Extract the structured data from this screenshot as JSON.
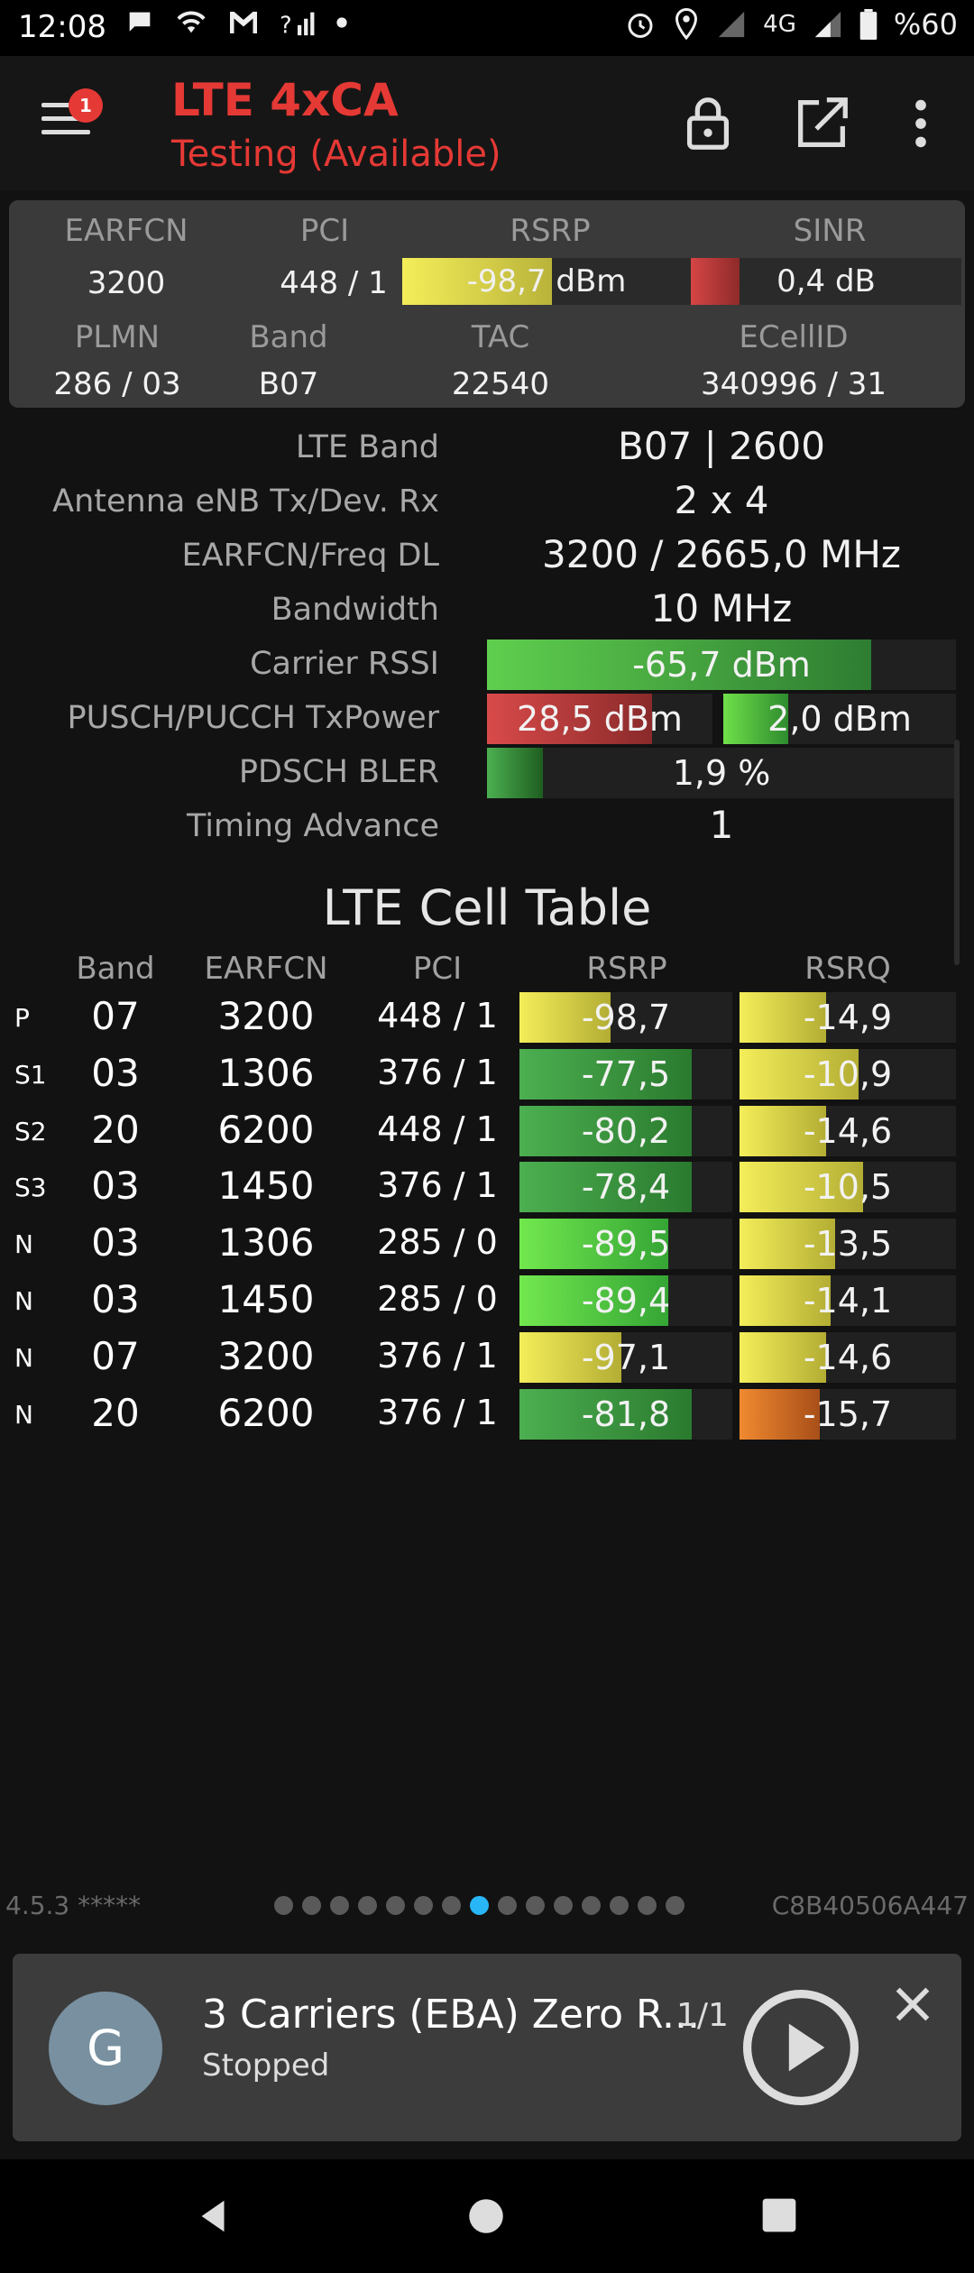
{
  "status_bar": {
    "time": "12:08",
    "network": "4G",
    "battery": "%60",
    "left_icons": [
      "chat-icon",
      "wifi-icon",
      "gmail-icon",
      "wifi-calling-icon",
      "dot-icon"
    ],
    "right_icons": [
      "alarm-icon",
      "location-icon",
      "signal-icon",
      "signal-icon",
      "battery-icon"
    ]
  },
  "app_bar": {
    "title": "LTE 4xCA",
    "subtitle": "Testing (Available)",
    "badge": "1",
    "accent_color": "#e53935"
  },
  "summary": {
    "labels": {
      "earfcn": "EARFCN",
      "pci": "PCI",
      "rsrp": "RSRP",
      "sinr": "SINR",
      "plmn": "PLMN",
      "band": "Band",
      "tac": "TAC",
      "ecellid": "ECellID"
    },
    "earfcn": "3200",
    "pci": "448 / 1",
    "rsrp": "-98,7 dBm",
    "rsrp_level": 0.52,
    "sinr": "0,4 dB",
    "sinr_level": 0.18,
    "plmn": "286 / 03",
    "band": "B07",
    "tac": "22540",
    "ecellid": "340996 / 31"
  },
  "details": {
    "lte_band_label": "LTE Band",
    "lte_band": "B07 | 2600",
    "antenna_label": "Antenna eNB Tx/Dev. Rx",
    "antenna": "2 x 4",
    "freq_label": "EARFCN/Freq DL",
    "freq": "3200 / 2665,0 MHz",
    "bandwidth_label": "Bandwidth",
    "bandwidth": "10 MHz",
    "rssi_label": "Carrier RSSI",
    "rssi": "-65,7 dBm",
    "rssi_level": 0.82,
    "txpower_label": "PUSCH/PUCCH TxPower",
    "pusch": "28,5 dBm",
    "pusch_level": 0.73,
    "pucch": "2,0 dBm",
    "pucch_level": 0.28,
    "bler_label": "PDSCH BLER",
    "bler": "1,9 %",
    "bler_level": 0.12,
    "ta_label": "Timing Advance",
    "ta": "1"
  },
  "cell_table": {
    "title": "LTE Cell Table",
    "headers": {
      "band": "Band",
      "earfcn": "EARFCN",
      "pci": "PCI",
      "rsrp": "RSRP",
      "rsrq": "RSRQ"
    },
    "rows": [
      {
        "type": "P",
        "band": "07",
        "earfcn": "3200",
        "pci": "448 / 1",
        "rsrp": "-98,7",
        "rsrp_level": 0.43,
        "rsrp_color": "yellow",
        "rsrq": "-14,9",
        "rsrq_level": 0.4,
        "rsrq_color": "yellow"
      },
      {
        "type": "S1",
        "band": "03",
        "earfcn": "1306",
        "pci": "376 / 1",
        "rsrp": "-77,5",
        "rsrp_level": 0.81,
        "rsrp_color": "green",
        "rsrq": "-10,9",
        "rsrq_level": 0.55,
        "rsrq_color": "yellow"
      },
      {
        "type": "S2",
        "band": "20",
        "earfcn": "6200",
        "pci": "448 / 1",
        "rsrp": "-80,2",
        "rsrp_level": 0.81,
        "rsrp_color": "green",
        "rsrq": "-14,6",
        "rsrq_level": 0.4,
        "rsrq_color": "yellow"
      },
      {
        "type": "S3",
        "band": "03",
        "earfcn": "1450",
        "pci": "376 / 1",
        "rsrp": "-78,4",
        "rsrp_level": 0.81,
        "rsrp_color": "green",
        "rsrq": "-10,5",
        "rsrq_level": 0.57,
        "rsrq_color": "yellow"
      },
      {
        "type": "N",
        "band": "03",
        "earfcn": "1306",
        "pci": "285 / 0",
        "rsrp": "-89,5",
        "rsrp_level": 0.7,
        "rsrp_color": "lime",
        "rsrq": "-13,5",
        "rsrq_level": 0.44,
        "rsrq_color": "yellow"
      },
      {
        "type": "N",
        "band": "03",
        "earfcn": "1450",
        "pci": "285 / 0",
        "rsrp": "-89,4",
        "rsrp_level": 0.7,
        "rsrp_color": "lime",
        "rsrq": "-14,1",
        "rsrq_level": 0.42,
        "rsrq_color": "yellow"
      },
      {
        "type": "N",
        "band": "07",
        "earfcn": "3200",
        "pci": "376 / 1",
        "rsrp": "-97,1",
        "rsrp_level": 0.48,
        "rsrp_color": "yellow",
        "rsrq": "-14,6",
        "rsrq_level": 0.4,
        "rsrq_color": "yellow"
      },
      {
        "type": "N",
        "band": "20",
        "earfcn": "6200",
        "pci": "376 / 1",
        "rsrp": "-81,8",
        "rsrp_level": 0.81,
        "rsrp_color": "green",
        "rsrq": "-15,7",
        "rsrq_level": 0.37,
        "rsrq_color": "orange"
      }
    ]
  },
  "footer": {
    "version": "4.5.3 *****",
    "device_id": "C8B40506A447",
    "page_count": 15,
    "active_page": 8
  },
  "player": {
    "avatar_letter": "G",
    "title": "3 Carriers (EBA) Zero R...",
    "count": "1/1",
    "status": "Stopped"
  },
  "nav": [
    "back-icon",
    "home-icon",
    "recents-icon"
  ]
}
